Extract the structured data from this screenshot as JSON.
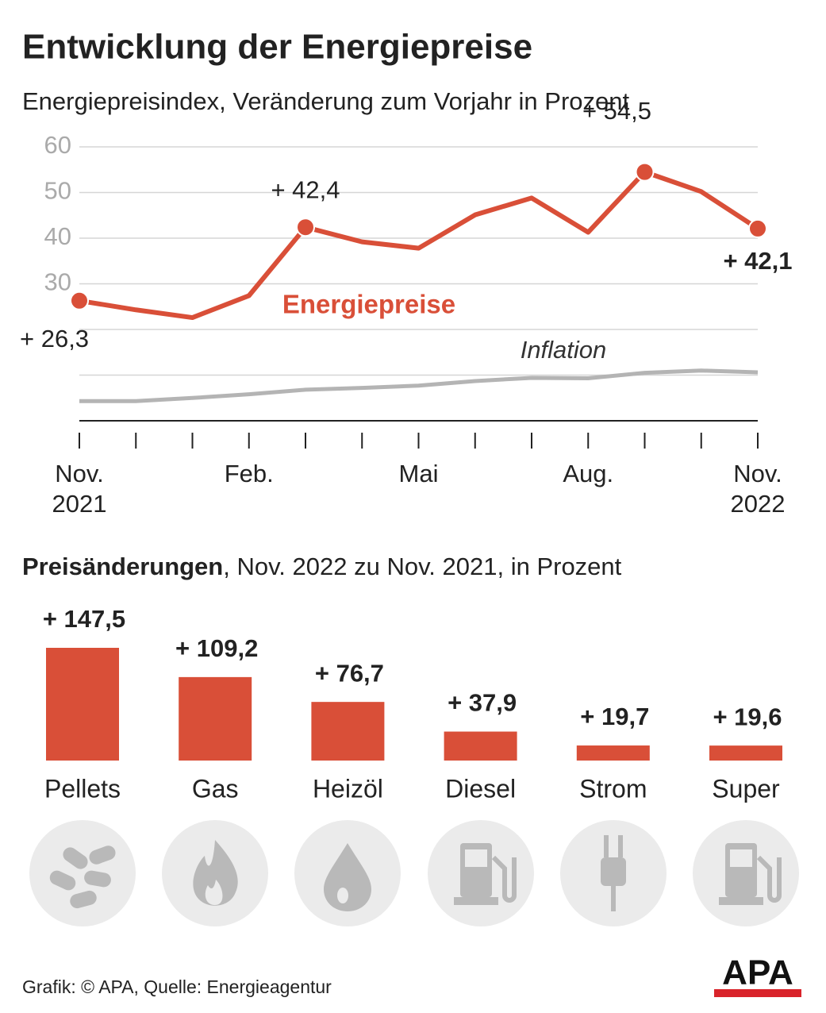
{
  "chart_data": [
    {
      "type": "line",
      "title": "Entwicklung der Energiepreise",
      "subtitle": "Energiepreisindex, Veränderung zum Vorjahr in Prozent",
      "categories": [
        "Nov. 2021",
        null,
        null,
        "Feb.",
        null,
        null,
        "Mai",
        null,
        null,
        "Aug.",
        null,
        null,
        "Nov. 2022"
      ],
      "series": [
        {
          "name": "Energiepreise",
          "color": "#d94f38",
          "values": [
            26.3,
            24.3,
            22.6,
            27.4,
            42.4,
            39.2,
            37.8,
            45.1,
            48.8,
            41.3,
            54.5,
            50.2,
            42.1
          ],
          "value_labels": [
            "+ 26,3",
            null,
            null,
            null,
            "+ 42,4",
            null,
            null,
            null,
            null,
            null,
            "+ 54,5",
            null,
            "+ 42,1"
          ]
        },
        {
          "name": "Inflation",
          "color": "#b4b4b4",
          "values": [
            4.3,
            4.3,
            5.0,
            5.8,
            6.8,
            7.2,
            7.7,
            8.7,
            9.4,
            9.3,
            10.5,
            11.0,
            10.6
          ]
        }
      ],
      "ylim": [
        0,
        60
      ],
      "yticks": [
        30,
        40,
        50,
        60
      ],
      "grid": true
    },
    {
      "type": "bar",
      "title": "Preisänderungen",
      "subtitle": ", Nov. 2022 zu Nov. 2021, in Prozent",
      "categories": [
        "Pellets",
        "Gas",
        "Heizöl",
        "Diesel",
        "Strom",
        "Super"
      ],
      "values": [
        147.5,
        109.2,
        76.7,
        37.9,
        19.7,
        19.6
      ],
      "value_labels": [
        "+ 147,5",
        "+ 109,2",
        "+ 76,7",
        "+ 37,9",
        "+ 19,7",
        "+ 19,6"
      ],
      "color": "#d94f38"
    }
  ],
  "footer": {
    "source": "Grafik: © APA, Quelle: Energieagentur",
    "logo": "APA"
  }
}
